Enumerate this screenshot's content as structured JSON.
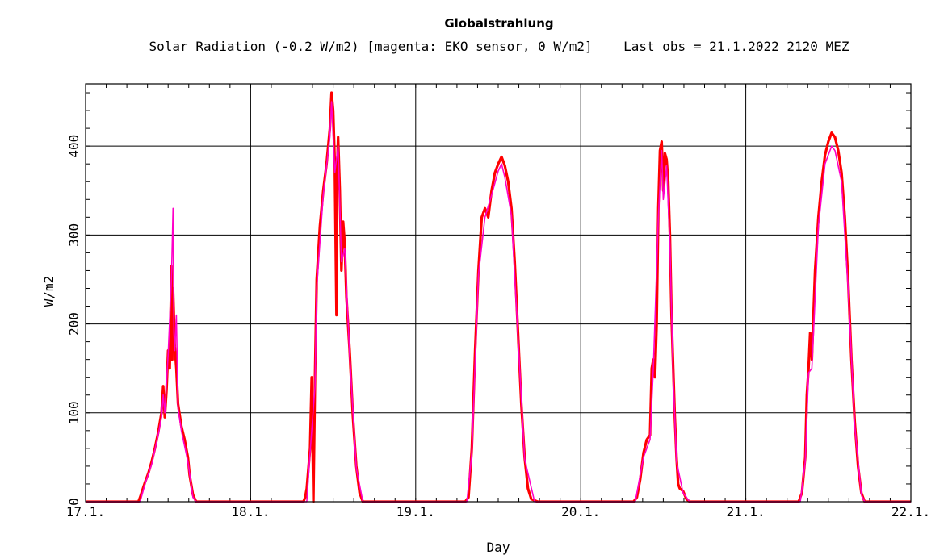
{
  "header": {
    "title": "Globalstrahlung",
    "subtitle": "Solar Radiation (-0.2 W/m2) [magenta: EKO sensor, 0 W/m2]    Last obs = 21.1.2022 2120 MEZ"
  },
  "colors": {
    "main_series": "#ff0000",
    "eko_series": "#ff00c8",
    "grid": "#000000",
    "background": "#ffffff"
  },
  "chart_data": {
    "type": "line",
    "title": "Solar Radiation (-0.2 W/m2) [magenta: EKO sensor, 0 W/m2]",
    "xlabel": "Day",
    "ylabel": "W/m2",
    "xlim": [
      0,
      5
    ],
    "ylim": [
      0,
      470
    ],
    "x_ticks": [
      0,
      1,
      2,
      3,
      4,
      5
    ],
    "x_tick_labels": [
      "17.1.",
      "18.1.",
      "19.1.",
      "20.1.",
      "21.1.",
      "22.1."
    ],
    "y_ticks": [
      0,
      100,
      200,
      300,
      400
    ],
    "y_tick_labels": [
      "0",
      "100",
      "200",
      "300",
      "400"
    ],
    "grid": true,
    "series": [
      {
        "name": "Solar Radiation",
        "color": "#ff0000",
        "points": [
          [
            0.0,
            0
          ],
          [
            0.32,
            0
          ],
          [
            0.33,
            5
          ],
          [
            0.36,
            22
          ],
          [
            0.38,
            32
          ],
          [
            0.4,
            45
          ],
          [
            0.42,
            60
          ],
          [
            0.44,
            78
          ],
          [
            0.46,
            100
          ],
          [
            0.47,
            130
          ],
          [
            0.48,
            95
          ],
          [
            0.49,
            125
          ],
          [
            0.5,
            170
          ],
          [
            0.51,
            150
          ],
          [
            0.52,
            265
          ],
          [
            0.525,
            160
          ],
          [
            0.53,
            240
          ],
          [
            0.54,
            175
          ],
          [
            0.55,
            150
          ],
          [
            0.56,
            110
          ],
          [
            0.58,
            85
          ],
          [
            0.6,
            70
          ],
          [
            0.62,
            50
          ],
          [
            0.63,
            30
          ],
          [
            0.65,
            8
          ],
          [
            0.67,
            0
          ],
          [
            1.0,
            0
          ],
          [
            1.32,
            0
          ],
          [
            1.33,
            5
          ],
          [
            1.34,
            15
          ],
          [
            1.36,
            60
          ],
          [
            1.37,
            140
          ],
          [
            1.38,
            0
          ],
          [
            1.39,
            140
          ],
          [
            1.4,
            250
          ],
          [
            1.42,
            310
          ],
          [
            1.44,
            350
          ],
          [
            1.46,
            380
          ],
          [
            1.48,
            420
          ],
          [
            1.49,
            460
          ],
          [
            1.5,
            440
          ],
          [
            1.51,
            380
          ],
          [
            1.52,
            210
          ],
          [
            1.525,
            380
          ],
          [
            1.53,
            410
          ],
          [
            1.54,
            350
          ],
          [
            1.55,
            260
          ],
          [
            1.56,
            315
          ],
          [
            1.57,
            290
          ],
          [
            1.58,
            230
          ],
          [
            1.6,
            170
          ],
          [
            1.62,
            95
          ],
          [
            1.64,
            40
          ],
          [
            1.66,
            10
          ],
          [
            1.68,
            0
          ],
          [
            2.0,
            0
          ],
          [
            2.3,
            0
          ],
          [
            2.32,
            5
          ],
          [
            2.34,
            60
          ],
          [
            2.36,
            170
          ],
          [
            2.38,
            260
          ],
          [
            2.4,
            320
          ],
          [
            2.42,
            330
          ],
          [
            2.44,
            320
          ],
          [
            2.46,
            350
          ],
          [
            2.48,
            370
          ],
          [
            2.5,
            380
          ],
          [
            2.52,
            388
          ],
          [
            2.54,
            378
          ],
          [
            2.56,
            360
          ],
          [
            2.58,
            330
          ],
          [
            2.6,
            270
          ],
          [
            2.62,
            190
          ],
          [
            2.64,
            110
          ],
          [
            2.66,
            50
          ],
          [
            2.68,
            15
          ],
          [
            2.7,
            3
          ],
          [
            2.74,
            0
          ],
          [
            3.0,
            0
          ],
          [
            3.32,
            0
          ],
          [
            3.34,
            5
          ],
          [
            3.36,
            25
          ],
          [
            3.38,
            55
          ],
          [
            3.4,
            70
          ],
          [
            3.42,
            75
          ],
          [
            3.43,
            150
          ],
          [
            3.44,
            160
          ],
          [
            3.45,
            140
          ],
          [
            3.46,
            200
          ],
          [
            3.47,
            330
          ],
          [
            3.48,
            395
          ],
          [
            3.49,
            405
          ],
          [
            3.5,
            350
          ],
          [
            3.51,
            392
          ],
          [
            3.52,
            385
          ],
          [
            3.53,
            360
          ],
          [
            3.54,
            300
          ],
          [
            3.55,
            210
          ],
          [
            3.56,
            150
          ],
          [
            3.57,
            95
          ],
          [
            3.58,
            50
          ],
          [
            3.59,
            20
          ],
          [
            3.6,
            15
          ],
          [
            3.62,
            12
          ],
          [
            3.64,
            3
          ],
          [
            3.66,
            0
          ],
          [
            4.0,
            0
          ],
          [
            4.32,
            0
          ],
          [
            4.34,
            10
          ],
          [
            4.36,
            50
          ],
          [
            4.37,
            120
          ],
          [
            4.38,
            150
          ],
          [
            4.39,
            190
          ],
          [
            4.4,
            160
          ],
          [
            4.42,
            260
          ],
          [
            4.44,
            320
          ],
          [
            4.46,
            360
          ],
          [
            4.48,
            390
          ],
          [
            4.5,
            405
          ],
          [
            4.52,
            415
          ],
          [
            4.54,
            410
          ],
          [
            4.56,
            395
          ],
          [
            4.58,
            370
          ],
          [
            4.6,
            320
          ],
          [
            4.62,
            250
          ],
          [
            4.64,
            160
          ],
          [
            4.66,
            90
          ],
          [
            4.68,
            40
          ],
          [
            4.7,
            10
          ],
          [
            4.72,
            0
          ],
          [
            5.0,
            0
          ]
        ]
      },
      {
        "name": "EKO sensor",
        "color": "#ff00c8",
        "points": [
          [
            0.0,
            0
          ],
          [
            0.33,
            0
          ],
          [
            0.36,
            20
          ],
          [
            0.4,
            42
          ],
          [
            0.44,
            75
          ],
          [
            0.46,
            95
          ],
          [
            0.47,
            120
          ],
          [
            0.48,
            100
          ],
          [
            0.5,
            165
          ],
          [
            0.52,
            250
          ],
          [
            0.53,
            330
          ],
          [
            0.535,
            190
          ],
          [
            0.54,
            170
          ],
          [
            0.55,
            210
          ],
          [
            0.56,
            105
          ],
          [
            0.58,
            80
          ],
          [
            0.62,
            45
          ],
          [
            0.65,
            5
          ],
          [
            0.67,
            0
          ],
          [
            1.0,
            0
          ],
          [
            1.34,
            0
          ],
          [
            1.36,
            55
          ],
          [
            1.39,
            130
          ],
          [
            1.4,
            240
          ],
          [
            1.44,
            345
          ],
          [
            1.48,
            410
          ],
          [
            1.49,
            450
          ],
          [
            1.51,
            370
          ],
          [
            1.53,
            400
          ],
          [
            1.55,
            270
          ],
          [
            1.57,
            285
          ],
          [
            1.6,
            165
          ],
          [
            1.64,
            38
          ],
          [
            1.68,
            0
          ],
          [
            2.0,
            0
          ],
          [
            2.31,
            0
          ],
          [
            2.34,
            55
          ],
          [
            2.38,
            255
          ],
          [
            2.42,
            320
          ],
          [
            2.46,
            345
          ],
          [
            2.5,
            372
          ],
          [
            2.52,
            380
          ],
          [
            2.54,
            365
          ],
          [
            2.58,
            322
          ],
          [
            2.62,
            185
          ],
          [
            2.66,
            48
          ],
          [
            2.72,
            0
          ],
          [
            3.0,
            0
          ],
          [
            3.33,
            0
          ],
          [
            3.38,
            50
          ],
          [
            3.42,
            70
          ],
          [
            3.44,
            150
          ],
          [
            3.47,
            320
          ],
          [
            3.49,
            395
          ],
          [
            3.5,
            340
          ],
          [
            3.52,
            378
          ],
          [
            3.54,
            290
          ],
          [
            3.56,
            140
          ],
          [
            3.58,
            45
          ],
          [
            3.62,
            10
          ],
          [
            3.66,
            0
          ],
          [
            4.0,
            0
          ],
          [
            4.33,
            0
          ],
          [
            4.36,
            45
          ],
          [
            4.38,
            145
          ],
          [
            4.4,
            150
          ],
          [
            4.44,
            310
          ],
          [
            4.48,
            380
          ],
          [
            4.52,
            400
          ],
          [
            4.54,
            395
          ],
          [
            4.58,
            360
          ],
          [
            4.62,
            240
          ],
          [
            4.66,
            85
          ],
          [
            4.7,
            8
          ],
          [
            4.72,
            0
          ],
          [
            5.0,
            0
          ]
        ]
      }
    ]
  }
}
